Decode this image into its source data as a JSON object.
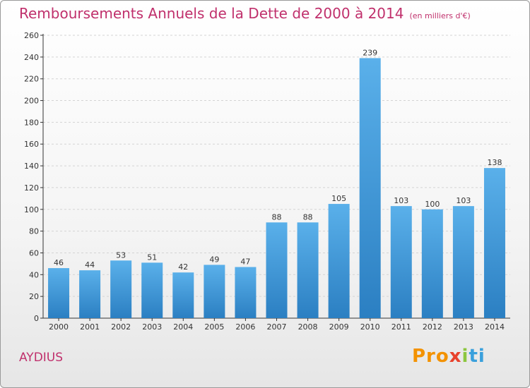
{
  "header": {
    "title": "Remboursements Annuels de la Dette de 2000 à 2014",
    "unit": "(en milliers d'€)"
  },
  "footer": {
    "commune": "AYDIUS",
    "logo": [
      "Pro",
      "x",
      "i",
      "ti"
    ]
  },
  "colors": {
    "title": "#c0306c",
    "bar_top": "#5ab0ea",
    "bar_bottom": "#2b7fc2",
    "axis": "#333333"
  },
  "chart_data": {
    "type": "bar",
    "categories": [
      "2000",
      "2001",
      "2002",
      "2003",
      "2004",
      "2005",
      "2006",
      "2007",
      "2008",
      "2009",
      "2010",
      "2011",
      "2012",
      "2013",
      "2014"
    ],
    "values": [
      46,
      44,
      53,
      51,
      42,
      49,
      47,
      88,
      88,
      105,
      239,
      103,
      100,
      103,
      138
    ],
    "ylim": [
      0,
      260
    ],
    "yticks": [
      0,
      20,
      40,
      60,
      80,
      100,
      120,
      140,
      160,
      180,
      200,
      220,
      240,
      260
    ],
    "grid": true,
    "title": "Remboursements Annuels de la Dette de 2000 à 2014",
    "xlabel": "",
    "ylabel": ""
  }
}
